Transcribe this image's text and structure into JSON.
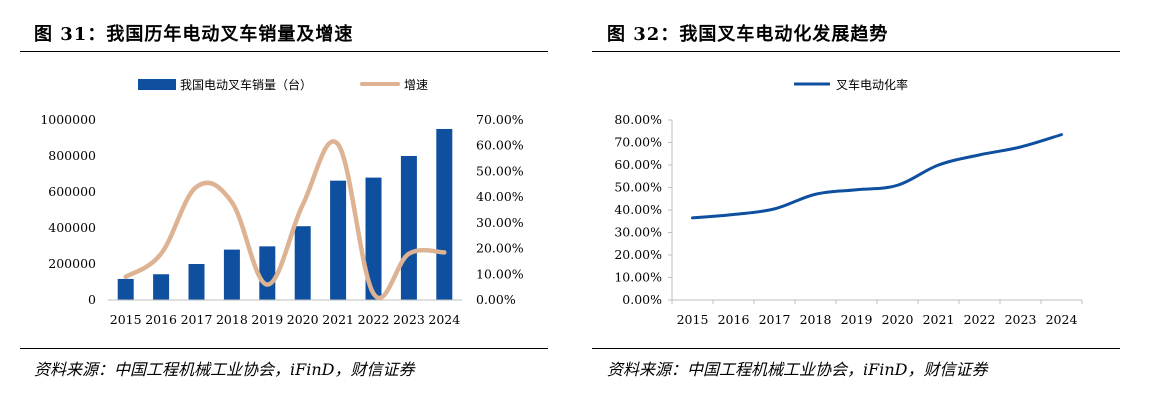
{
  "left": {
    "title": "图 31：我国历年电动叉车销量及增速",
    "source": "资料来源：中国工程机械工业协会，iFinD，财信证券",
    "chart_data": {
      "type": "bar",
      "categories": [
        "2015",
        "2016",
        "2017",
        "2018",
        "2019",
        "2020",
        "2021",
        "2022",
        "2023",
        "2024"
      ],
      "series": [
        {
          "name": "我国电动叉车销量（台）",
          "type": "bar",
          "axis": "left",
          "values": [
            117000,
            143000,
            200000,
            280000,
            298000,
            410000,
            663000,
            680000,
            800000,
            950000
          ]
        },
        {
          "name": "增速",
          "type": "line",
          "axis": "right",
          "values": [
            0.09,
            0.18,
            0.44,
            0.38,
            0.06,
            0.37,
            0.605,
            0.025,
            0.18,
            0.185
          ]
        }
      ],
      "y_left": {
        "ticks": [
          "0",
          "200000",
          "400000",
          "600000",
          "800000",
          "1000000"
        ],
        "ylim": [
          0,
          1000000
        ]
      },
      "y_right": {
        "ticks": [
          "0.00%",
          "10.00%",
          "20.00%",
          "30.00%",
          "40.00%",
          "50.00%",
          "60.00%",
          "70.00%"
        ],
        "ylim": [
          0,
          0.7
        ]
      },
      "legend": "top",
      "grid": false,
      "colors": {
        "bar": "#0e4fa0",
        "line": "#ddb393"
      }
    }
  },
  "right": {
    "title": "图 32：我国叉车电动化发展趋势",
    "source": "资料来源：中国工程机械工业协会，iFinD，财信证券",
    "chart_data": {
      "type": "line",
      "categories": [
        "2015",
        "2016",
        "2017",
        "2018",
        "2019",
        "2020",
        "2021",
        "2022",
        "2023",
        "2024"
      ],
      "series": [
        {
          "name": "叉车电动化率",
          "values": [
            0.365,
            0.38,
            0.405,
            0.47,
            0.49,
            0.51,
            0.6,
            0.645,
            0.68,
            0.735
          ]
        }
      ],
      "y": {
        "ticks": [
          "0.00%",
          "10.00%",
          "20.00%",
          "30.00%",
          "40.00%",
          "50.00%",
          "60.00%",
          "70.00%",
          "80.00%"
        ],
        "ylim": [
          0,
          0.8
        ]
      },
      "legend": "top",
      "grid": false,
      "colors": {
        "line": "#0e4fa0"
      }
    }
  }
}
